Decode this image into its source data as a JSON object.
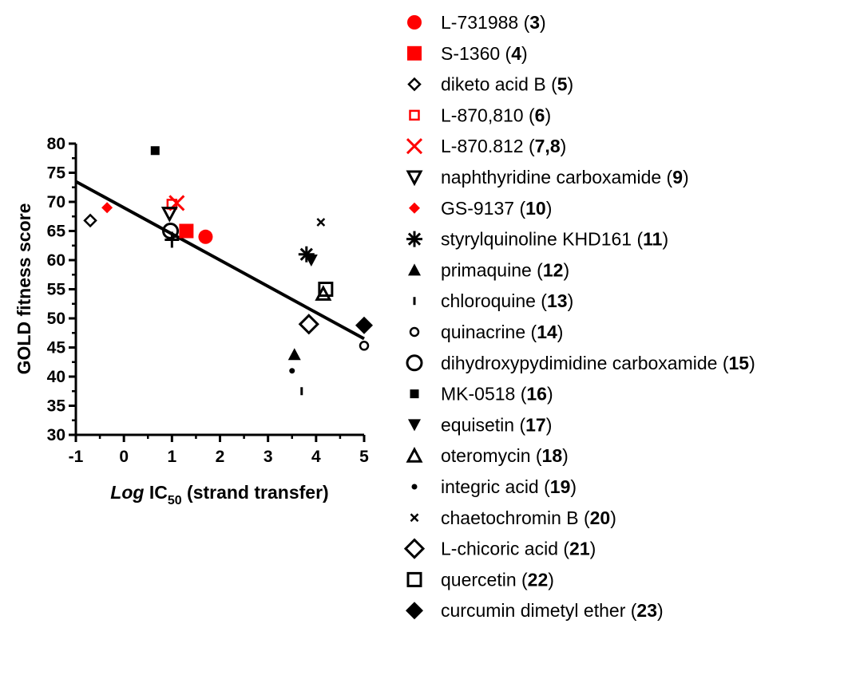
{
  "chart_data": {
    "type": "scatter",
    "xlabel": {
      "italic": "Log",
      "base": " IC",
      "sub": "50",
      "rest": " (strand transfer)"
    },
    "ylabel": "GOLD fitness score",
    "xlim": [
      -1,
      5
    ],
    "ylim": [
      30,
      80
    ],
    "x_ticks": [
      "-1",
      "0",
      "1",
      "2",
      "3",
      "4",
      "5"
    ],
    "y_ticks": [
      "30",
      "35",
      "40",
      "45",
      "50",
      "55",
      "60",
      "65",
      "70",
      "75",
      "80"
    ],
    "grid": false,
    "legend_position": "right",
    "regression_line": {
      "x": [
        -1,
        5
      ],
      "y": [
        73.5,
        46.5
      ]
    },
    "series": [
      {
        "name": "L-731988",
        "id": "3",
        "marker": "circle-filled",
        "color": "#ff0000",
        "points": [
          [
            1.7,
            64.0
          ]
        ]
      },
      {
        "name": "S-1360",
        "id": "4",
        "marker": "square-filled",
        "color": "#ff0000",
        "points": [
          [
            1.3,
            65.0
          ]
        ]
      },
      {
        "name": "diketo acid B",
        "id": "5",
        "marker": "diamond-open-small",
        "color": "#000000",
        "points": [
          [
            -0.7,
            66.8
          ]
        ]
      },
      {
        "name": "L-870,810",
        "id": "6",
        "marker": "square-open-small",
        "color": "#ff0000",
        "points": [
          [
            1.0,
            69.6
          ]
        ]
      },
      {
        "name": "L-870.812",
        "id": "7,8",
        "marker": "x",
        "color": "#ff0000",
        "points": [
          [
            1.1,
            69.8
          ]
        ]
      },
      {
        "name": "naphthyridine carboxamide",
        "id": "9",
        "marker": "triangle-down-open",
        "color": "#000000",
        "points": [
          [
            0.95,
            68.0
          ]
        ]
      },
      {
        "name": "GS-9137",
        "id": "10",
        "marker": "diamond-filled-small",
        "color": "#ff0000",
        "points": [
          [
            -0.35,
            69.0
          ]
        ]
      },
      {
        "name": "styrylquinoline KHD161",
        "id": "11",
        "marker": "asterisk",
        "color": "#000000",
        "points": [
          [
            3.8,
            61.0
          ]
        ]
      },
      {
        "name": "primaquine",
        "id": "12",
        "marker": "triangle-up-filled",
        "color": "#000000",
        "points": [
          [
            3.55,
            43.8
          ]
        ]
      },
      {
        "name": "chloroquine",
        "id": "13",
        "marker": "vline",
        "color": "#000000",
        "points": [
          [
            3.7,
            37.5
          ]
        ]
      },
      {
        "name": "quinacrine",
        "id": "14",
        "marker": "circle-open-small",
        "color": "#000000",
        "points": [
          [
            5.0,
            45.3
          ]
        ]
      },
      {
        "name": "dihydroxypydimidine carboxamide",
        "id": "15",
        "marker": "circle-open",
        "color": "#000000",
        "points": [
          [
            0.97,
            65.0
          ]
        ]
      },
      {
        "name": "MK-0518",
        "id": "16",
        "marker": "square-filled-small",
        "color": "#000000",
        "points": [
          [
            0.65,
            78.8
          ]
        ]
      },
      {
        "name": "equisetin",
        "id": "17",
        "marker": "triangle-down-filled",
        "color": "#000000",
        "points": [
          [
            3.9,
            60.0
          ]
        ]
      },
      {
        "name": "oteromycin",
        "id": "18",
        "marker": "triangle-up-open",
        "color": "#000000",
        "points": [
          [
            4.15,
            54.2
          ]
        ]
      },
      {
        "name": "integric acid",
        "id": "19",
        "marker": "dot",
        "color": "#000000",
        "points": [
          [
            3.5,
            41.0
          ]
        ]
      },
      {
        "name": "chaetochromin B",
        "id": "20",
        "marker": "x-small",
        "color": "#000000",
        "points": [
          [
            4.1,
            66.5
          ]
        ]
      },
      {
        "name": "L-chicoric acid",
        "id": "21",
        "marker": "diamond-open",
        "color": "#000000",
        "points": [
          [
            3.85,
            49.0
          ]
        ]
      },
      {
        "name": "quercetin",
        "id": "22",
        "marker": "square-open",
        "color": "#000000",
        "points": [
          [
            4.2,
            55.0
          ]
        ]
      },
      {
        "name": "curcumin dimetyl ether",
        "id": "23",
        "marker": "diamond-filled",
        "color": "#000000",
        "points": [
          [
            5.0,
            48.8
          ]
        ]
      }
    ],
    "extra_points": [
      {
        "marker": "plus",
        "color": "#000000",
        "points": [
          [
            1.0,
            63.5
          ]
        ]
      }
    ]
  }
}
